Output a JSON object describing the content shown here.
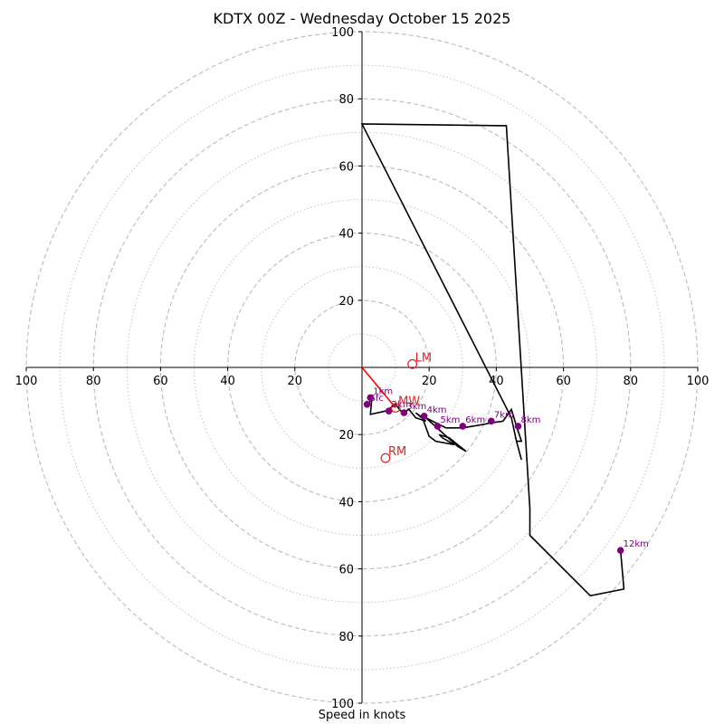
{
  "chart_data": {
    "type": "hodograph",
    "title": "KDTX 00Z - Wednesday October 15 2025",
    "xlabel": "Speed in knots",
    "unit": "knots",
    "max_speed": 100,
    "ring_major_step": 20,
    "ring_minor_step": 10,
    "tick_labels": [
      "100",
      "80",
      "60",
      "40",
      "20",
      "20",
      "40",
      "60",
      "80",
      "100",
      "100",
      "80",
      "60",
      "40",
      "20",
      "20",
      "40",
      "60",
      "80",
      "100"
    ],
    "hodograph_line": {
      "color": "#000000",
      "points": [
        [
          2,
          -11
        ],
        [
          3,
          -8.5
        ],
        [
          2.5,
          -14
        ],
        [
          7,
          -13
        ],
        [
          10,
          -11
        ],
        [
          12,
          -13.5
        ],
        [
          14,
          -12.5
        ],
        [
          16,
          -15
        ],
        [
          19,
          -16
        ],
        [
          16,
          -13.5
        ],
        [
          18,
          -15
        ],
        [
          20,
          -20.5
        ],
        [
          22,
          -22
        ],
        [
          27.5,
          -23
        ],
        [
          24,
          -21
        ],
        [
          23,
          -20
        ],
        [
          26,
          -21
        ],
        [
          31,
          -25
        ],
        [
          28.5,
          -23.5
        ],
        [
          19,
          -15
        ],
        [
          25,
          -18
        ],
        [
          30,
          -18
        ],
        [
          36,
          -17
        ],
        [
          38.5,
          -16.5
        ],
        [
          42,
          -16
        ],
        [
          44.5,
          -12.5
        ],
        [
          46,
          -17.5
        ],
        [
          47.5,
          -22
        ],
        [
          46,
          -22
        ],
        [
          47.5,
          -27.5
        ],
        [
          46,
          -22
        ],
        [
          44.5,
          -15
        ],
        [
          0,
          72.5
        ],
        [
          43,
          72
        ],
        [
          50,
          -42
        ],
        [
          50,
          -50
        ],
        [
          68,
          -68
        ],
        [
          78,
          -66
        ],
        [
          77,
          -54.5
        ]
      ]
    },
    "height_markers": [
      {
        "label": "1km",
        "u": 2.5,
        "v": -9
      },
      {
        "label": "Sfc",
        "u": 1.5,
        "v": -11
      },
      {
        "label": "2km",
        "u": 8,
        "v": -13
      },
      {
        "label": "3km",
        "u": 12.5,
        "v": -13.5
      },
      {
        "label": "4km",
        "u": 18.5,
        "v": -14.5
      },
      {
        "label": "5km",
        "u": 22.5,
        "v": -17.5
      },
      {
        "label": "6km",
        "u": 30,
        "v": -17.5
      },
      {
        "label": "7km",
        "u": 38.5,
        "v": -16
      },
      {
        "label": "8km",
        "u": 46.5,
        "v": -17.5
      },
      {
        "label": "12km",
        "u": 77,
        "v": -54.5
      }
    ],
    "storm_motions": [
      {
        "label": "LM",
        "u": 15,
        "v": 1
      },
      {
        "label": "MW",
        "u": 10,
        "v": -12
      },
      {
        "label": "RM",
        "u": 7,
        "v": -27
      }
    ],
    "mean_wind_vector": {
      "from": [
        0,
        0
      ],
      "to": [
        10,
        -12
      ],
      "color": "#ff0000"
    },
    "colors": {
      "marker": "#800080",
      "marker_label": "#800080",
      "storm_motion": "#d62728",
      "ring": "#bbbbbb",
      "axis": "#000000"
    }
  }
}
